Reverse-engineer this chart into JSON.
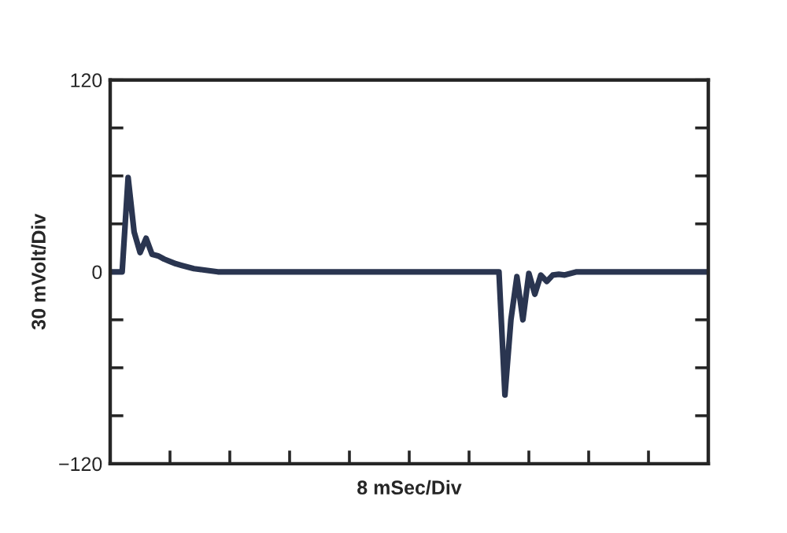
{
  "chart_data": {
    "type": "line",
    "xlabel": "8 mSec/Div",
    "ylabel": "30 mVolt/Div",
    "categories": [
      null,
      null,
      null,
      null,
      null,
      null,
      null,
      null,
      null,
      null,
      null,
      null,
      null,
      null,
      null,
      null,
      null,
      null,
      null,
      null,
      null,
      null,
      null,
      null,
      null,
      null,
      null,
      null,
      null,
      null,
      null,
      null,
      null,
      null,
      null,
      null,
      null,
      null,
      null,
      null,
      null,
      null,
      null,
      null,
      null,
      null,
      null,
      null,
      null,
      null,
      null,
      null,
      null,
      null,
      null,
      null,
      null,
      null,
      null,
      null,
      null,
      null,
      null,
      null,
      null,
      null,
      null,
      null,
      null,
      null,
      null,
      null,
      null,
      null,
      null,
      null,
      null,
      null,
      null,
      null,
      null,
      null,
      null,
      null,
      null,
      null,
      null,
      null,
      null,
      null,
      null,
      null,
      null,
      null,
      null,
      null,
      null,
      null,
      null,
      null,
      null
    ],
    "series": [
      {
        "color": "#2a3550",
        "values": [
          0,
          0,
          0,
          59,
          25,
          12,
          21,
          11,
          10,
          8,
          6.5,
          5,
          4,
          3,
          2,
          1.5,
          1,
          0.5,
          0,
          0,
          0,
          0,
          0,
          0,
          0,
          0,
          0,
          0,
          0,
          0,
          0,
          0,
          0,
          0,
          0,
          0,
          0,
          0,
          0,
          0,
          0,
          0,
          0,
          0,
          0,
          0,
          0,
          0,
          0,
          0,
          0,
          0,
          0,
          0,
          0,
          0,
          0,
          0,
          0,
          0,
          0,
          0,
          0,
          0,
          0,
          0,
          -77,
          -30,
          -3,
          -30,
          -1,
          -14,
          -2,
          -6,
          -2,
          -1.5,
          -2,
          -1,
          0,
          0,
          0,
          0,
          0,
          0,
          0,
          0,
          0,
          0,
          0,
          0,
          0,
          0,
          0,
          0,
          0,
          0,
          0,
          0,
          0,
          0,
          0
        ]
      }
    ],
    "ylim": [
      -120,
      120
    ],
    "yticks": [
      -120,
      {
        "value": -90,
        "label": null
      },
      {
        "value": -60,
        "label": null
      },
      {
        "value": -30,
        "label": null
      },
      0,
      {
        "value": 30,
        "label": null
      },
      {
        "value": 60,
        "label": null
      },
      {
        "value": 90,
        "label": null
      },
      120
    ],
    "marker": "none",
    "line_style": "solid"
  }
}
